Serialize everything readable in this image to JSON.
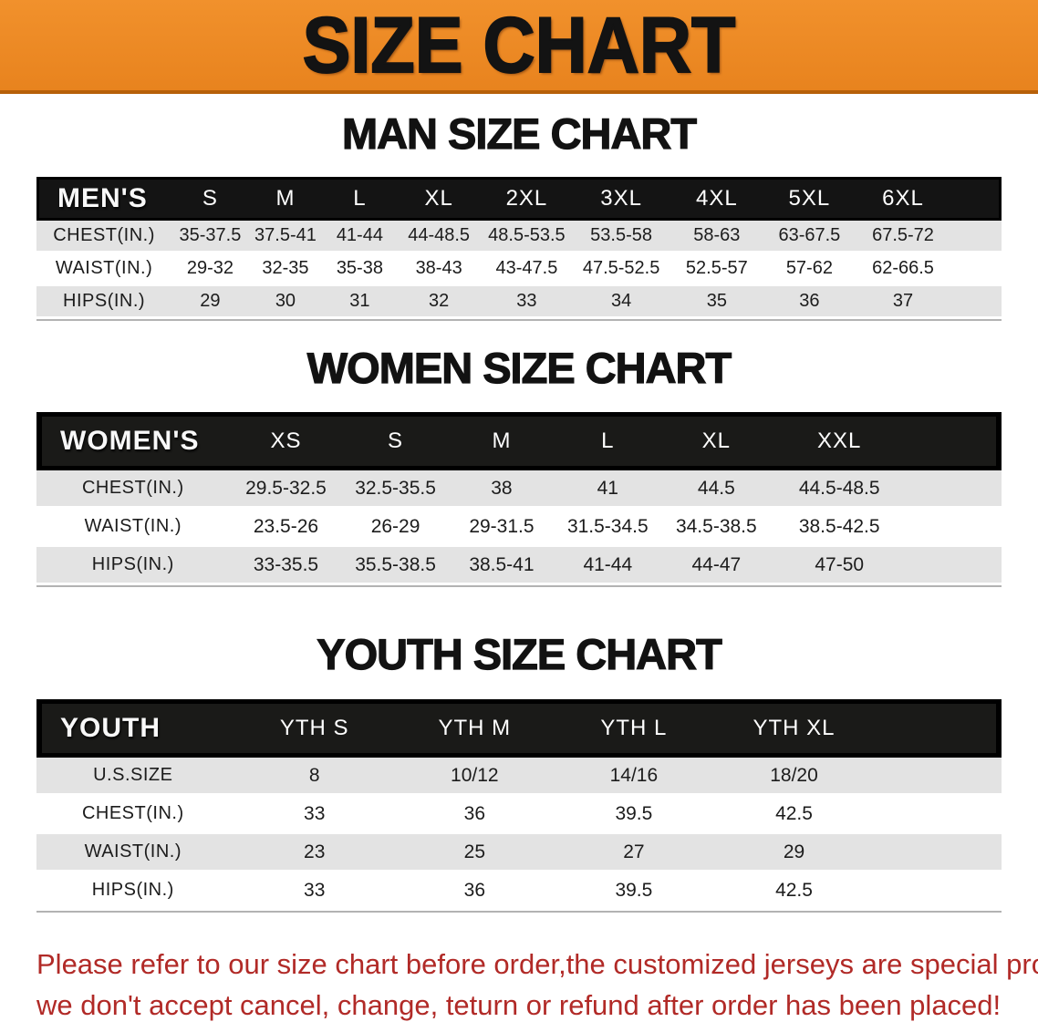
{
  "banner": {
    "title": "SIZE CHART",
    "bg_color": "#E8831E",
    "text_color": "#131313"
  },
  "colors": {
    "banner_orange": "#E8831E",
    "bar_black": "#1A1A18",
    "row_gray": "#E3E3E3",
    "row_white": "#FFFFFF",
    "disclaimer_red": "#B12A27"
  },
  "sections": [
    {
      "id": "men",
      "heading": "MAN SIZE CHART",
      "header_label": "MEN'S",
      "columns": [
        "S",
        "M",
        "L",
        "XL",
        "2XL",
        "3XL",
        "4XL",
        "5XL",
        "6XL"
      ],
      "rows": [
        {
          "label": "CHEST(IN.)",
          "values": [
            "35-37.5",
            "37.5-41",
            "41-44",
            "44-48.5",
            "48.5-53.5",
            "53.5-58",
            "58-63",
            "63-67.5",
            "67.5-72"
          ]
        },
        {
          "label": "WAIST(IN.)",
          "values": [
            "29-32",
            "32-35",
            "35-38",
            "38-43",
            "43-47.5",
            "47.5-52.5",
            "52.5-57",
            "57-62",
            "62-66.5"
          ]
        },
        {
          "label": "HIPS(IN.)",
          "values": [
            "29",
            "30",
            "31",
            "32",
            "33",
            "34",
            "35",
            "36",
            "37"
          ]
        }
      ]
    },
    {
      "id": "women",
      "heading": "WOMEN SIZE CHART",
      "header_label": "WOMEN'S",
      "columns": [
        "XS",
        "S",
        "M",
        "L",
        "XL",
        "XXL"
      ],
      "rows": [
        {
          "label": "CHEST(IN.)",
          "values": [
            "29.5-32.5",
            "32.5-35.5",
            "38",
            "41",
            "44.5",
            "44.5-48.5"
          ]
        },
        {
          "label": "WAIST(IN.)",
          "values": [
            "23.5-26",
            "26-29",
            "29-31.5",
            "31.5-34.5",
            "34.5-38.5",
            "38.5-42.5"
          ]
        },
        {
          "label": "HIPS(IN.)",
          "values": [
            "33-35.5",
            "35.5-38.5",
            "38.5-41",
            "41-44",
            "44-47",
            "47-50"
          ]
        }
      ]
    },
    {
      "id": "youth",
      "heading": "YOUTH SIZE CHART",
      "header_label": "YOUTH",
      "columns": [
        "YTH S",
        "YTH M",
        "YTH L",
        "YTH XL"
      ],
      "rows": [
        {
          "label": "U.S.SIZE",
          "values": [
            "8",
            "10/12",
            "14/16",
            "18/20"
          ]
        },
        {
          "label": "CHEST(IN.)",
          "values": [
            "33",
            "36",
            "39.5",
            "42.5"
          ]
        },
        {
          "label": "WAIST(IN.)",
          "values": [
            "23",
            "25",
            "27",
            "29"
          ]
        },
        {
          "label": "HIPS(IN.)",
          "values": [
            "33",
            "36",
            "39.5",
            "42.5"
          ]
        }
      ]
    }
  ],
  "disclaimer": {
    "line1": "Please refer to our size chart before order,the customized jerseys are special products,",
    "line2": "we don't accept cancel, change, teturn or refund after order has been placed!"
  }
}
